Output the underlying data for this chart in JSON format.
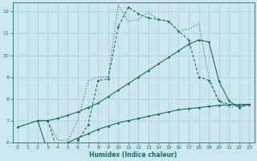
{
  "background_color": "#cce8ee",
  "grid_color": "#b0cdd4",
  "line_color": "#1a6b6b",
  "xlabel": "Humidex (Indice chaleur)",
  "xlim": [
    -0.5,
    23.5
  ],
  "ylim": [
    6,
    12.4
  ],
  "yticks": [
    6,
    7,
    8,
    9,
    10,
    11,
    12
  ],
  "xticks": [
    0,
    1,
    2,
    3,
    4,
    5,
    6,
    7,
    8,
    9,
    10,
    11,
    12,
    13,
    14,
    15,
    16,
    17,
    18,
    19,
    20,
    21,
    22,
    23
  ],
  "series": [
    {
      "x": [
        0,
        2,
        3,
        4,
        5,
        6,
        7,
        8,
        9,
        10,
        11,
        12,
        13,
        14,
        15,
        16,
        17,
        18,
        19,
        20,
        21,
        22,
        23
      ],
      "y": [
        6.7,
        7.0,
        7.0,
        6.1,
        6.1,
        7.0,
        8.8,
        9.0,
        9.0,
        12.3,
        11.55,
        11.65,
        11.95,
        11.6,
        11.55,
        11.1,
        11.2,
        11.45,
        9.0,
        7.9,
        7.6,
        7.7,
        7.75
      ],
      "linestyle": "dotted",
      "marker": null,
      "linewidth": 0.8
    },
    {
      "x": [
        3,
        4,
        5,
        6,
        7,
        8,
        9,
        10,
        11,
        12,
        13,
        14,
        15,
        16,
        17,
        18,
        19,
        20,
        21,
        22,
        23
      ],
      "y": [
        7.0,
        5.6,
        5.5,
        6.1,
        6.8,
        8.85,
        8.9,
        11.3,
        12.2,
        11.9,
        11.7,
        11.65,
        11.55,
        11.1,
        10.7,
        9.0,
        8.85,
        7.9,
        7.75,
        7.7,
        7.75
      ],
      "linestyle": "dashed",
      "marker": "D",
      "linewidth": 0.8
    },
    {
      "x": [
        2,
        3,
        4,
        5,
        6,
        7,
        8,
        9,
        10,
        11,
        12,
        13,
        14,
        15,
        16,
        17,
        18,
        19,
        20,
        21,
        22,
        23
      ],
      "y": [
        7.0,
        7.0,
        7.1,
        7.25,
        7.4,
        7.6,
        7.8,
        8.1,
        8.4,
        8.7,
        9.0,
        9.3,
        9.6,
        9.9,
        10.2,
        10.5,
        10.7,
        10.6,
        8.8,
        7.9,
        7.6,
        7.75
      ],
      "linestyle": "solid",
      "marker": "D",
      "linewidth": 0.8
    },
    {
      "x": [
        0,
        2,
        3,
        4,
        5,
        6,
        7,
        8,
        9,
        10,
        11,
        12,
        13,
        14,
        15,
        16,
        17,
        18,
        19,
        20,
        21,
        22,
        23
      ],
      "y": [
        6.7,
        7.0,
        5.6,
        5.5,
        6.0,
        6.2,
        6.4,
        6.6,
        6.75,
        6.9,
        7.0,
        7.1,
        7.2,
        7.3,
        7.4,
        7.5,
        7.55,
        7.6,
        7.65,
        7.7,
        7.72,
        7.74,
        7.75
      ],
      "linestyle": "solid",
      "marker": "D",
      "linewidth": 0.8
    }
  ]
}
